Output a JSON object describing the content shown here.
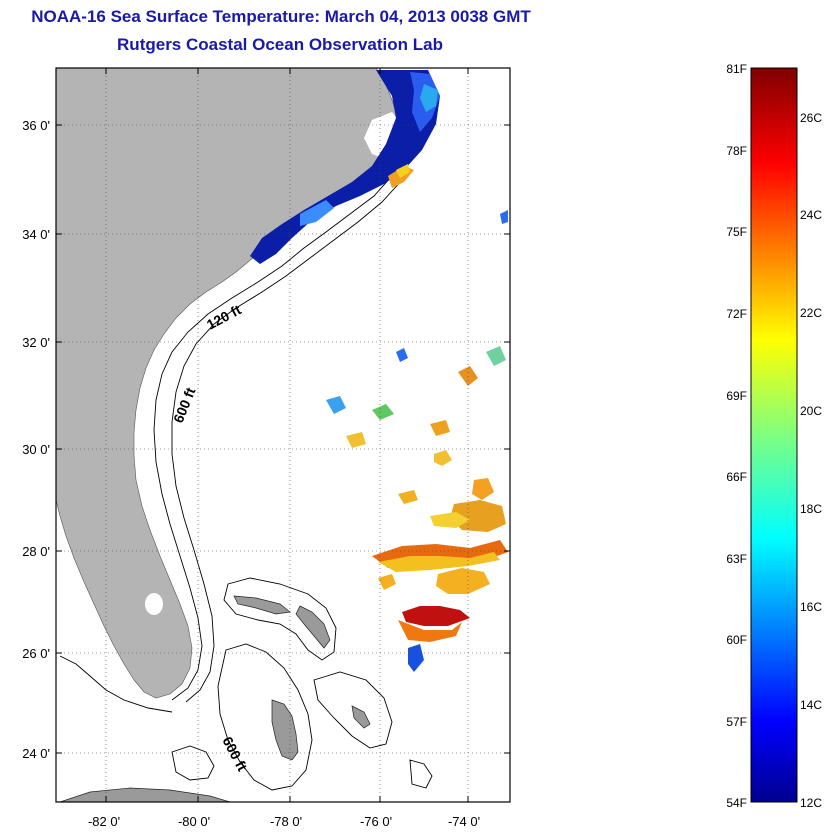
{
  "title": "NOAA-16 Sea Surface Temperature:  March 04, 2013 0038 GMT",
  "subtitle": "Rutgers Coastal Ocean Observation Lab",
  "map": {
    "lat_ticks": [
      "36 0'",
      "34 0'",
      "32 0'",
      "30 0'",
      "28 0'",
      "26 0'",
      "24 0'"
    ],
    "lon_ticks": [
      "-82 0'",
      "-80 0'",
      "-78 0'",
      "-76 0'",
      "-74 0'"
    ],
    "contour_labels": [
      "120 ft",
      "600 ft",
      "600 ft"
    ],
    "colors": {
      "land": "#b4b4b4",
      "ocean": "#ffffff",
      "frame": "#000000"
    }
  },
  "colorbar": {
    "f_labels": [
      "81F",
      "78F",
      "75F",
      "72F",
      "69F",
      "66F",
      "63F",
      "60F",
      "57F",
      "54F"
    ],
    "c_labels": [
      "26C",
      "24C",
      "22C",
      "20C",
      "18C",
      "16C",
      "14C",
      "12C"
    ],
    "colormap": "jet",
    "range_f": [
      54,
      81
    ]
  }
}
